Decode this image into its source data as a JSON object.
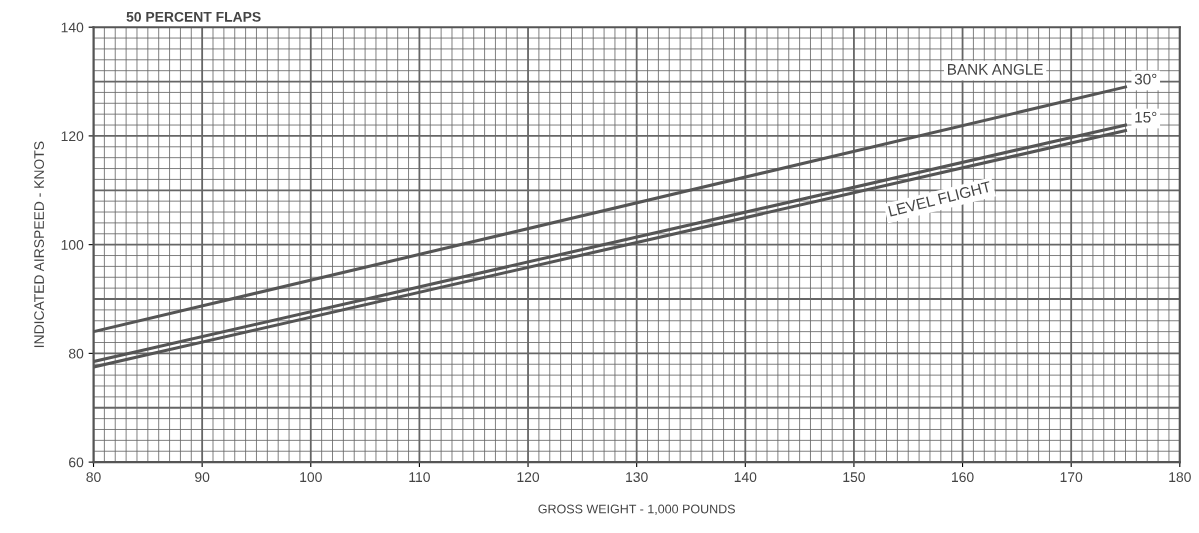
{
  "chart_data": {
    "type": "line",
    "title": "50 PERCENT FLAPS",
    "xlabel": "GROSS WEIGHT - 1,000 POUNDS",
    "ylabel": "INDICATED AIRSPEED - KNOTS",
    "x": [
      80,
      175
    ],
    "series": [
      {
        "name": "30°",
        "color": "#555555",
        "values": [
          84,
          129
        ]
      },
      {
        "name": "15°",
        "color": "#555555",
        "values": [
          78.5,
          122
        ]
      },
      {
        "name": "LEVEL FLIGHT",
        "color": "#555555",
        "values": [
          77.5,
          121
        ]
      }
    ],
    "annotations": [
      "BANK ANGLE"
    ],
    "xlim": [
      80,
      180
    ],
    "ylim": [
      60,
      140
    ],
    "xticks": [
      80,
      90,
      100,
      110,
      120,
      130,
      140,
      150,
      160,
      170,
      180
    ],
    "yticks": [
      60,
      80,
      100,
      120,
      140
    ],
    "grid": true,
    "legend": false,
    "marker": "none",
    "line_style": "solid"
  }
}
